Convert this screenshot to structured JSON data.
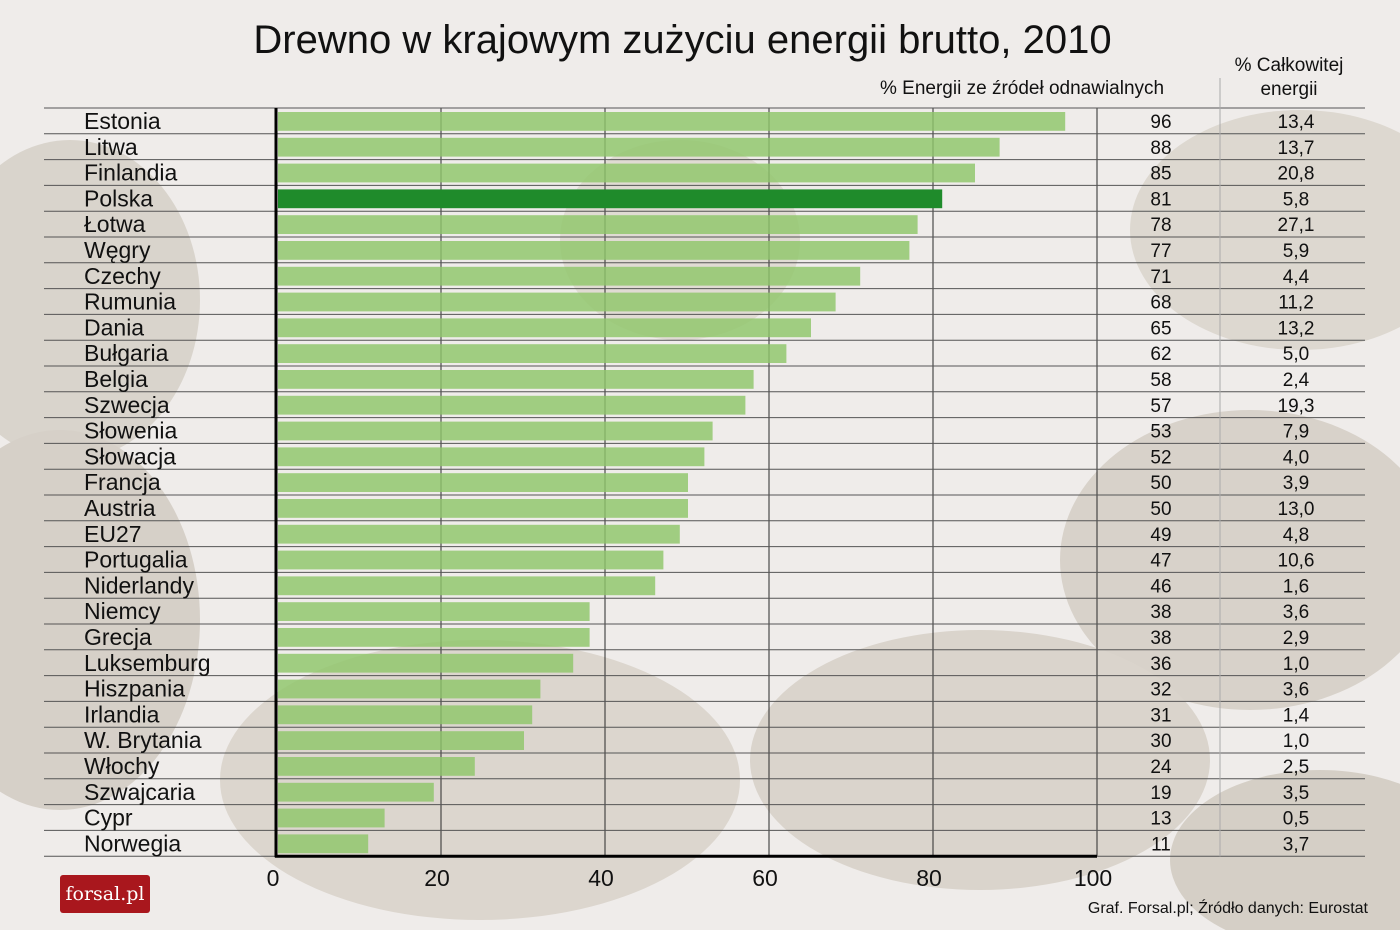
{
  "chart_data": {
    "type": "bar",
    "orientation": "horizontal",
    "title": "Drewno w krajowym zużyciu energii brutto, 2010",
    "series_header": "% Energii ze źródeł odnawialnych",
    "table_header": "% Całkowitej energii",
    "table_header_lines": [
      "% Całkowitej",
      "energii"
    ],
    "xlim": [
      0,
      100
    ],
    "xticks": [
      "0",
      "20",
      "40",
      "60",
      "80",
      "100"
    ],
    "grid": true,
    "highlight_category": "Polska",
    "colors": {
      "bar": "#8fc66a",
      "highlight": "#1f8b2b"
    },
    "categories": [
      "Estonia",
      "Litwa",
      "Finlandia",
      "Polska",
      "Łotwa",
      "Węgry",
      "Czechy",
      "Rumunia",
      "Dania",
      "Bułgaria",
      "Belgia",
      "Szwecja",
      "Słowenia",
      "Słowacja",
      "Francja",
      "Austria",
      "EU27",
      "Portugalia",
      "Niderlandy",
      "Niemcy",
      "Grecja",
      "Luksemburg",
      "Hiszpania",
      "Irlandia",
      "W. Brytania",
      "Włochy",
      "Szwajcaria",
      "Cypr",
      "Norwegia"
    ],
    "values": [
      96,
      88,
      85,
      81,
      78,
      77,
      71,
      68,
      65,
      62,
      58,
      57,
      53,
      52,
      50,
      50,
      49,
      47,
      46,
      38,
      38,
      36,
      32,
      31,
      30,
      24,
      19,
      13,
      11
    ],
    "value_labels": [
      "96",
      "88",
      "85",
      "81",
      "78",
      "77",
      "71",
      "68",
      "65",
      "62",
      "58",
      "57",
      "53",
      "52",
      "50",
      "50",
      "49",
      "47",
      "46",
      "38",
      "38",
      "36",
      "32",
      "31",
      "30",
      "24",
      "19",
      "13",
      "11"
    ],
    "share_of_total_energy": [
      "13,4",
      "13,7",
      "20,8",
      "5,8",
      "27,1",
      "5,9",
      "4,4",
      "11,2",
      "13,2",
      "5,0",
      "2,4",
      "19,3",
      "7,9",
      "4,0",
      "3,9",
      "13,0",
      "4,8",
      "10,6",
      "1,6",
      "3,6",
      "2,9",
      "1,0",
      "3,6",
      "1,4",
      "1,0",
      "2,5",
      "3,5",
      "0,5",
      "3,7"
    ]
  },
  "footer": {
    "source": "Graf. Forsal.pl; Źródło danych: Eurostat",
    "logo_text": "forsal.pl"
  }
}
